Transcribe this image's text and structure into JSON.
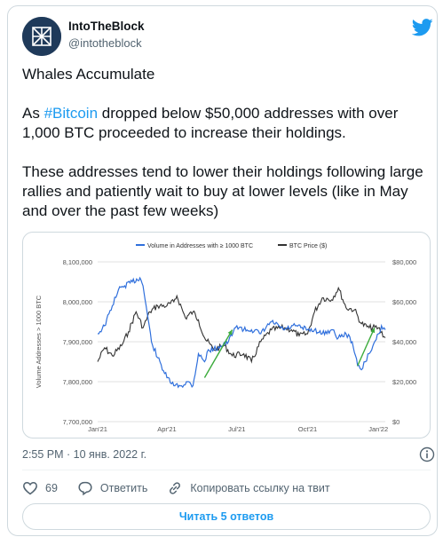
{
  "author": {
    "name": "IntoTheBlock",
    "handle": "@intotheblock"
  },
  "tweet": {
    "heading": "Whales Accumulate",
    "p2_before": "As ",
    "p2_hashtag": "#Bitcoin",
    "p2_after": " dropped below $50,000 addresses with over 1,000 BTC proceeded to increase their holdings.",
    "p3": "These addresses tend to lower their holdings following large rallies and patiently wait to buy at lower levels (like in May and over the past few weeks)"
  },
  "timestamp": "2:55 PM · 10 янв. 2022 г.",
  "actions": {
    "likes": "69",
    "reply": "Ответить",
    "copy_link": "Копировать ссылку на твит"
  },
  "replies_button": "Читать 5 ответов",
  "colors": {
    "accent": "#1d9bf0",
    "whale_series": "#2f6fdc",
    "btc_series": "#333333",
    "arrow": "#3cab3c"
  },
  "icons": [
    "intotheblock-logo",
    "twitter-bird-icon",
    "info-icon",
    "heart-icon",
    "reply-icon",
    "link-icon"
  ],
  "chart_data": {
    "type": "line",
    "title": "",
    "legend": [
      "Volume in Addresses with ≥ 1000 BTC",
      "BTC Price ($)"
    ],
    "legend_position": "top",
    "ylabel_left": "Volume Addresses > 1000 BTC",
    "ylabel_right": "",
    "left_ticks": [
      "8,100,000",
      "8,000,000",
      "7,900,000",
      "7,800,000",
      "7,700,000"
    ],
    "right_ticks": [
      "$80,000",
      "$60,000",
      "$40,000",
      "$20,000",
      "$0"
    ],
    "x_ticks": [
      "Jan'21",
      "Apr'21",
      "Jul'21",
      "Oct'21",
      "Jan'22"
    ],
    "ylim_left": [
      7700000,
      8100000
    ],
    "ylim_right": [
      0,
      80000
    ],
    "grid": true,
    "series": [
      {
        "name": "Volume in Addresses with ≥ 1000 BTC",
        "axis": "left",
        "x": [
          "2021-01-01",
          "2021-01-10",
          "2021-01-20",
          "2021-01-28",
          "2021-02-05",
          "2021-02-15",
          "2021-02-25",
          "2021-03-01",
          "2021-03-05",
          "2021-03-12",
          "2021-03-20",
          "2021-04-01",
          "2021-04-10",
          "2021-04-20",
          "2021-04-28",
          "2021-05-05",
          "2021-05-12",
          "2021-05-20",
          "2021-05-25",
          "2021-06-01",
          "2021-06-10",
          "2021-06-20",
          "2021-07-01",
          "2021-07-10",
          "2021-07-20",
          "2021-08-01",
          "2021-08-15",
          "2021-09-01",
          "2021-09-15",
          "2021-10-01",
          "2021-10-10",
          "2021-10-20",
          "2021-11-01",
          "2021-11-10",
          "2021-11-20",
          "2021-11-28",
          "2021-12-05",
          "2021-12-10",
          "2021-12-15",
          "2021-12-20",
          "2021-12-25",
          "2022-01-01",
          "2022-01-05",
          "2022-01-10"
        ],
        "y": [
          7920000,
          7940000,
          7990000,
          8030000,
          8040000,
          8050000,
          8060000,
          8040000,
          7990000,
          7900000,
          7860000,
          7810000,
          7790000,
          7790000,
          7800000,
          7790000,
          7870000,
          7850000,
          7880000,
          7880000,
          7890000,
          7900000,
          7940000,
          7930000,
          7930000,
          7920000,
          7950000,
          7930000,
          7940000,
          7930000,
          7930000,
          7920000,
          7930000,
          7910000,
          7920000,
          7900000,
          7840000,
          7830000,
          7850000,
          7870000,
          7890000,
          7920000,
          7940000,
          7930000
        ]
      },
      {
        "name": "BTC Price ($)",
        "axis": "right",
        "x": [
          "2021-01-01",
          "2021-01-10",
          "2021-01-20",
          "2021-02-01",
          "2021-02-10",
          "2021-02-20",
          "2021-03-01",
          "2021-03-10",
          "2021-03-20",
          "2021-04-01",
          "2021-04-10",
          "2021-04-14",
          "2021-04-25",
          "2021-05-05",
          "2021-05-12",
          "2021-05-20",
          "2021-06-01",
          "2021-06-15",
          "2021-06-25",
          "2021-07-10",
          "2021-07-20",
          "2021-08-01",
          "2021-08-15",
          "2021-09-01",
          "2021-09-10",
          "2021-09-20",
          "2021-10-01",
          "2021-10-10",
          "2021-10-20",
          "2021-11-01",
          "2021-11-10",
          "2021-11-20",
          "2021-12-01",
          "2021-12-10",
          "2021-12-20",
          "2022-01-01",
          "2022-01-10"
        ],
        "y": [
          30000,
          37000,
          33000,
          38000,
          45000,
          55000,
          47000,
          55000,
          58000,
          58000,
          60000,
          63000,
          52000,
          55000,
          51000,
          42000,
          36000,
          38000,
          33000,
          34000,
          30000,
          40000,
          46000,
          47000,
          46000,
          43000,
          44000,
          55000,
          62000,
          61000,
          67000,
          57000,
          56000,
          49000,
          47000,
          47000,
          42000
        ]
      }
    ],
    "annotations": [
      {
        "type": "arrow",
        "color": "green",
        "from": [
          "2021-05-20",
          7810000
        ],
        "to": [
          "2021-06-25",
          7930000
        ]
      },
      {
        "type": "arrow",
        "color": "green",
        "from": [
          "2021-12-05",
          7840000
        ],
        "to": [
          "2021-12-27",
          7935000
        ]
      }
    ]
  }
}
